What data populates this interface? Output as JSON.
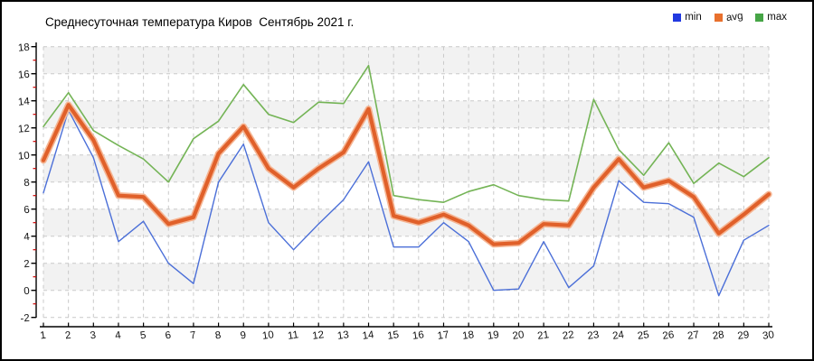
{
  "title": "Среднесуточная температура Киров  Сентябрь 2021 г.",
  "legend": [
    {
      "label": "min",
      "color": "#2139e0"
    },
    {
      "label": "avg",
      "color": "#e8702d"
    },
    {
      "label": "max",
      "color": "#46a546"
    }
  ],
  "chart_data": {
    "type": "line",
    "title": "Среднесуточная температура Киров  Сентябрь 2021 г.",
    "xlabel": "",
    "ylabel": "",
    "x": [
      1,
      2,
      3,
      4,
      5,
      6,
      7,
      8,
      9,
      10,
      11,
      12,
      13,
      14,
      15,
      16,
      17,
      18,
      19,
      20,
      21,
      22,
      23,
      24,
      25,
      26,
      27,
      28,
      29,
      30
    ],
    "ylim": [
      -2,
      18
    ],
    "ytick_step": 2,
    "grid": true,
    "legend_position": "top-right",
    "series": [
      {
        "name": "min",
        "color": "#4b6fd8",
        "width": 1.4,
        "values": [
          7.2,
          13.3,
          9.8,
          3.6,
          5.1,
          2.0,
          0.5,
          8.0,
          10.8,
          5.0,
          3.0,
          4.9,
          6.7,
          9.5,
          3.2,
          3.2,
          5.0,
          3.6,
          0.0,
          0.1,
          3.6,
          0.2,
          1.8,
          8.1,
          6.5,
          6.4,
          5.4,
          -0.4,
          3.7,
          4.8
        ]
      },
      {
        "name": "avg",
        "color": "#e0602a",
        "width": 4.2,
        "halo": "#f5b593",
        "values": [
          9.6,
          13.7,
          11.1,
          7.0,
          6.9,
          4.9,
          5.4,
          10.1,
          12.1,
          9.0,
          7.6,
          9.0,
          10.2,
          13.4,
          5.5,
          5.0,
          5.6,
          4.8,
          3.4,
          3.5,
          4.9,
          4.8,
          7.6,
          9.7,
          7.6,
          8.1,
          6.9,
          4.2,
          5.6,
          7.1
        ]
      },
      {
        "name": "max",
        "color": "#74b456",
        "width": 1.6,
        "values": [
          12.1,
          14.6,
          11.8,
          10.7,
          9.7,
          8.0,
          11.2,
          12.5,
          15.2,
          13.0,
          12.4,
          13.9,
          13.8,
          16.6,
          7.0,
          6.7,
          6.5,
          7.3,
          7.8,
          7.0,
          6.7,
          6.6,
          14.1,
          10.4,
          8.5,
          10.9,
          7.9,
          9.4,
          8.4,
          9.8
        ]
      }
    ],
    "styles": {
      "band_fill": "#f2f2f2",
      "grid_color": "#c9c9c9",
      "axis_color": "#000000",
      "minor_tick_color": "#cc0000",
      "tick_label_color": "#111111"
    }
  }
}
